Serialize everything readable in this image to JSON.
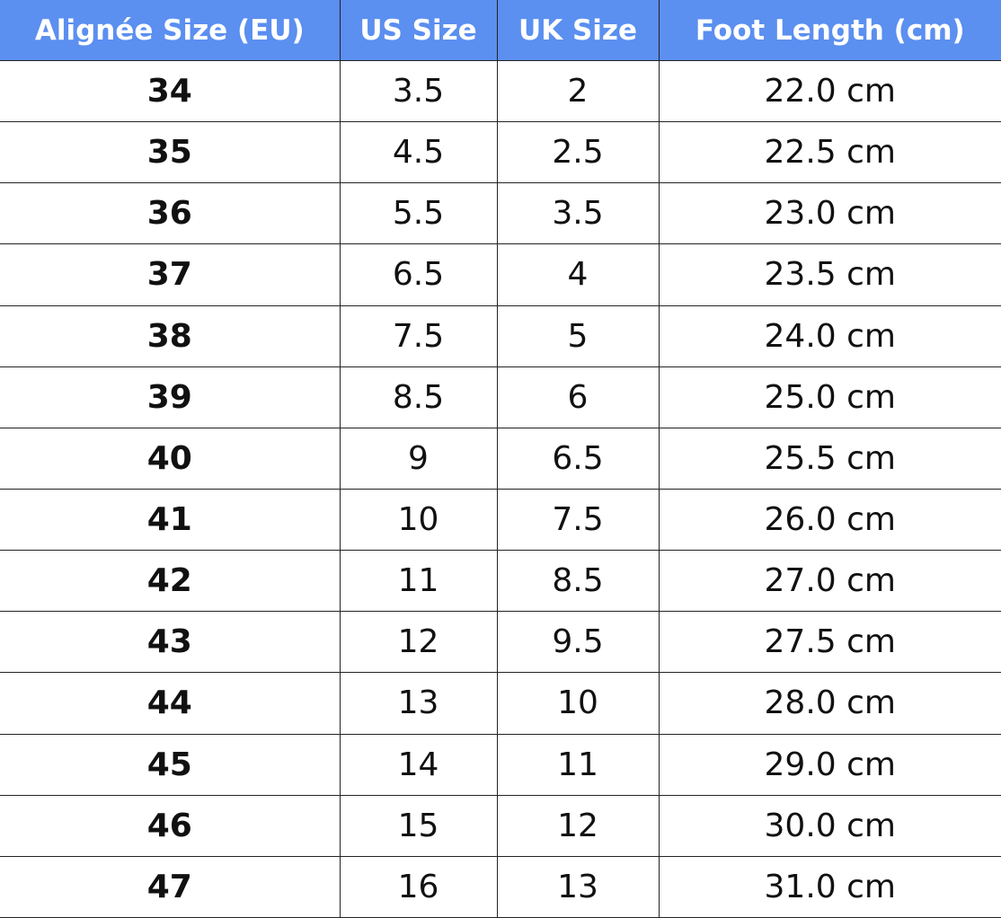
{
  "table": {
    "header": [
      "Alignée Size (EU)",
      "US Size",
      "UK Size",
      "Foot Length (cm)"
    ],
    "rows": [
      [
        "34",
        "3.5",
        "2",
        "22.0 cm"
      ],
      [
        "35",
        "4.5",
        "2.5",
        "22.5 cm"
      ],
      [
        "36",
        "5.5",
        "3.5",
        "23.0 cm"
      ],
      [
        "37",
        "6.5",
        "4",
        "23.5 cm"
      ],
      [
        "38",
        "7.5",
        "5",
        "24.0 cm"
      ],
      [
        "39",
        "8.5",
        "6",
        "25.0 cm"
      ],
      [
        "40",
        "9",
        "6.5",
        "25.5 cm"
      ],
      [
        "41",
        "10",
        "7.5",
        "26.0 cm"
      ],
      [
        "42",
        "11",
        "8.5",
        "27.0 cm"
      ],
      [
        "43",
        "12",
        "9.5",
        "27.5 cm"
      ],
      [
        "44",
        "13",
        "10",
        "28.0 cm"
      ],
      [
        "45",
        "14",
        "11",
        "29.0 cm"
      ],
      [
        "46",
        "15",
        "12",
        "30.0 cm"
      ],
      [
        "47",
        "16",
        "13",
        "31.0 cm"
      ]
    ]
  }
}
